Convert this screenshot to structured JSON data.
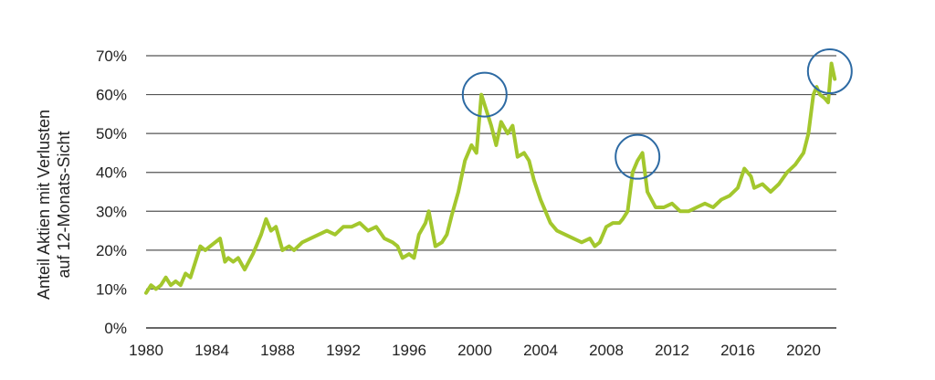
{
  "chart_data": {
    "type": "line",
    "ylabel_lines": [
      "Anteil Aktien mit Verlusten",
      "auf 12-Monats-Sicht"
    ],
    "xlim": [
      1980,
      2022
    ],
    "ylim": [
      0,
      70
    ],
    "grid": true,
    "x_ticks": [
      "1980",
      "1984",
      "1988",
      "1992",
      "1996",
      "2000",
      "2004",
      "2008",
      "2012",
      "2016",
      "2020"
    ],
    "y_ticks": [
      "0%",
      "10%",
      "20%",
      "30%",
      "40%",
      "50%",
      "60%",
      "70%"
    ],
    "colors": {
      "series": "#a3c72d",
      "highlight": "#2d6aa3",
      "grid": "#555555"
    },
    "series": [
      {
        "x": [
          1980.0,
          1980.3,
          1980.6,
          1980.9,
          1981.2,
          1981.5,
          1981.8,
          1982.1,
          1982.4,
          1982.7,
          1983.0,
          1983.3,
          1983.6,
          1983.9,
          1984.2,
          1984.5,
          1984.8,
          1985.0,
          1985.3,
          1985.6,
          1986.0,
          1986.5,
          1987.0,
          1987.3,
          1987.6,
          1987.9,
          1988.3,
          1988.7,
          1989.0,
          1989.5,
          1990.0,
          1990.5,
          1991.0,
          1991.5,
          1992.0,
          1992.5,
          1993.0,
          1993.5,
          1994.0,
          1994.5,
          1995.0,
          1995.3,
          1995.6,
          1996.0,
          1996.3,
          1996.6,
          1997.0,
          1997.2,
          1997.6,
          1998.0,
          1998.3,
          1998.6,
          1999.0,
          1999.4,
          1999.8,
          2000.1,
          2000.4,
          2000.7,
          2001.0,
          2001.3,
          2001.6,
          2002.0,
          2002.3,
          2002.6,
          2003.0,
          2003.3,
          2003.6,
          2004.0,
          2004.3,
          2004.6,
          2005.0,
          2005.5,
          2006.0,
          2006.5,
          2007.0,
          2007.3,
          2007.6,
          2008.0,
          2008.4,
          2008.8,
          2009.0,
          2009.3,
          2009.6,
          2009.9,
          2010.2,
          2010.5,
          2011.0,
          2011.5,
          2012.0,
          2012.5,
          2013.0,
          2013.5,
          2014.0,
          2014.5,
          2015.0,
          2015.5,
          2016.0,
          2016.4,
          2016.8,
          2017.0,
          2017.5,
          2018.0,
          2018.5,
          2019.0,
          2019.5,
          2020.0,
          2020.3,
          2020.6,
          2020.8,
          2021.0,
          2021.3,
          2021.5,
          2021.7,
          2021.9
        ],
        "values": [
          9,
          11,
          10,
          11,
          13,
          11,
          12,
          11,
          14,
          13,
          17,
          21,
          20,
          21,
          22,
          23,
          17,
          18,
          17,
          18,
          15,
          19,
          24,
          28,
          25,
          26,
          20,
          21,
          20,
          22,
          23,
          24,
          25,
          24,
          26,
          26,
          27,
          25,
          26,
          23,
          22,
          21,
          18,
          19,
          18,
          24,
          27,
          30,
          21,
          22,
          24,
          29,
          35,
          43,
          47,
          45,
          60,
          56,
          52,
          47,
          53,
          50,
          52,
          44,
          45,
          43,
          38,
          33,
          30,
          27,
          25,
          24,
          23,
          22,
          23,
          21,
          22,
          26,
          27,
          27,
          28,
          30,
          40,
          43,
          45,
          35,
          31,
          31,
          32,
          30,
          30,
          31,
          32,
          31,
          33,
          34,
          36,
          41,
          39,
          36,
          37,
          35,
          37,
          40,
          42,
          45,
          50,
          60,
          62,
          60,
          59,
          58,
          68,
          64
        ]
      }
    ],
    "highlights": [
      {
        "x": 2000.6,
        "y": 60
      },
      {
        "x": 2009.9,
        "y": 44
      },
      {
        "x": 2021.6,
        "y": 66
      }
    ]
  }
}
